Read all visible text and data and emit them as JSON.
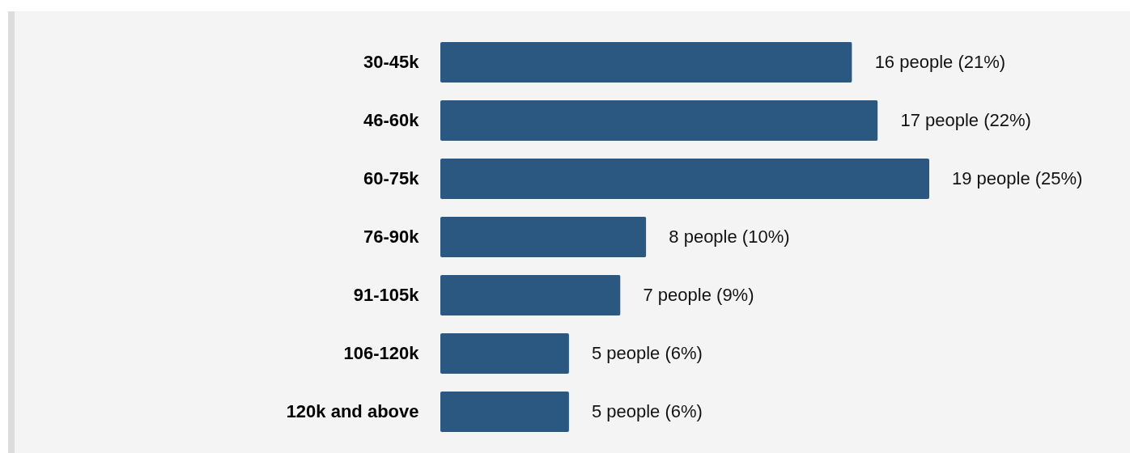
{
  "chart_data": {
    "type": "bar",
    "orientation": "horizontal",
    "categories": [
      "30-45k",
      "46-60k",
      "60-75k",
      "76-90k",
      "91-105k",
      "106-120k",
      "120k and above"
    ],
    "values": [
      16,
      17,
      19,
      8,
      7,
      5,
      5
    ],
    "value_labels": [
      "16 people (21%)",
      "17 people (22%)",
      "19 people (25%)",
      "8 people (10%)",
      "7 people (9%)",
      "5 people (6%)",
      "5 people (6%)"
    ],
    "color": "#2b5880"
  }
}
